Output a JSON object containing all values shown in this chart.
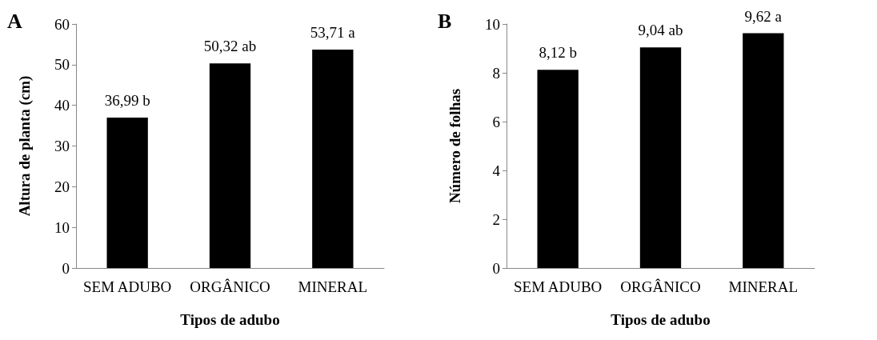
{
  "chart_data": [
    {
      "type": "bar",
      "title": "A",
      "xlabel": "Tipos de adubo",
      "ylabel": "Altura de planta (cm)",
      "categories": [
        "SEM ADUBO",
        "ORGÂNICO",
        "MINERAL"
      ],
      "values": [
        36.99,
        50.32,
        53.71
      ],
      "value_labels": [
        "36,99 b",
        "50,32 ab",
        "53,71 a"
      ],
      "color": "#000000",
      "ylim": [
        0,
        60
      ],
      "yticks": [
        0,
        10,
        20,
        30,
        40,
        50,
        60
      ],
      "grid": false
    },
    {
      "type": "bar",
      "title": "B",
      "xlabel": "Tipos de adubo",
      "ylabel": "Número de folhas",
      "categories": [
        "SEM ADUBO",
        "ORGÂNICO",
        "MINERAL"
      ],
      "values": [
        8.12,
        9.04,
        9.62
      ],
      "value_labels": [
        "8,12 b",
        "9,04 ab",
        "9,62 a"
      ],
      "color": "#000000",
      "ylim": [
        0,
        10
      ],
      "yticks": [
        0,
        2,
        4,
        6,
        8,
        10
      ],
      "grid": false
    }
  ]
}
